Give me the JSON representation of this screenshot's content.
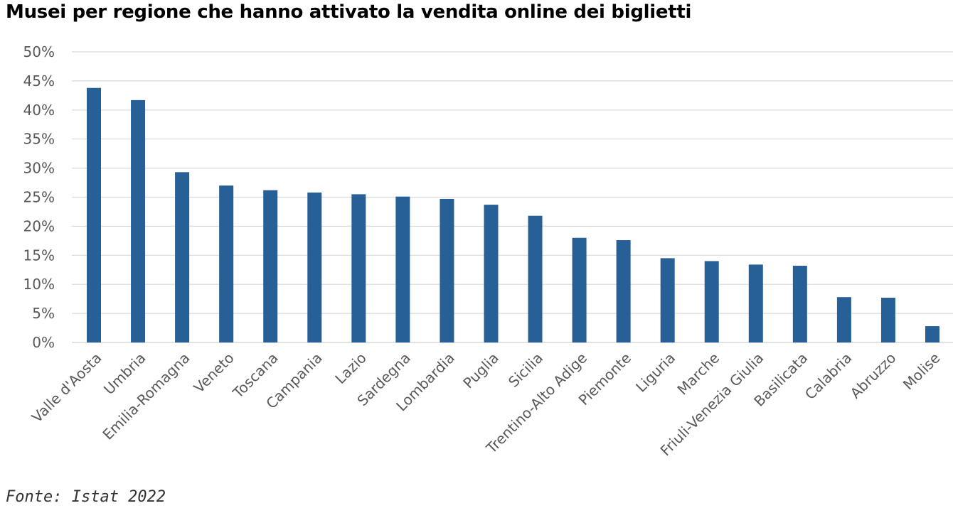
{
  "title": "Musei per regione che hanno attivato la vendita online dei biglietti",
  "source": "Fonte: Istat 2022",
  "colors": {
    "bar": "#276096",
    "grid": "#d9d9d9",
    "tick_text": "#595959"
  },
  "chart_data": {
    "type": "bar",
    "title": "Musei per regione che hanno attivato la vendita online dei biglietti",
    "xlabel": "",
    "ylabel": "",
    "ylim": [
      0,
      50
    ],
    "y_unit": "%",
    "y_ticks": [
      "0%",
      "5%",
      "10%",
      "15%",
      "20%",
      "25%",
      "30%",
      "35%",
      "40%",
      "45%",
      "50%"
    ],
    "grid": true,
    "legend": "none",
    "categories": [
      "Valle d'Aosta",
      "Umbria",
      "Emilia-Romagna",
      "Veneto",
      "Toscana",
      "Campania",
      "Lazio",
      "Sardegna",
      "Lombardia",
      "Puglia",
      "Sicilia",
      "Trentino-Alto Adige",
      "Piemonte",
      "Liguria",
      "Marche",
      "Friuli-Venezia Giulia",
      "Basilicata",
      "Calabria",
      "Abruzzo",
      "Molise"
    ],
    "values": [
      43.8,
      41.7,
      29.3,
      27.0,
      26.2,
      25.8,
      25.5,
      25.1,
      24.7,
      23.7,
      21.8,
      18.0,
      17.6,
      14.5,
      14.0,
      13.4,
      13.2,
      7.8,
      7.7,
      2.8
    ]
  }
}
